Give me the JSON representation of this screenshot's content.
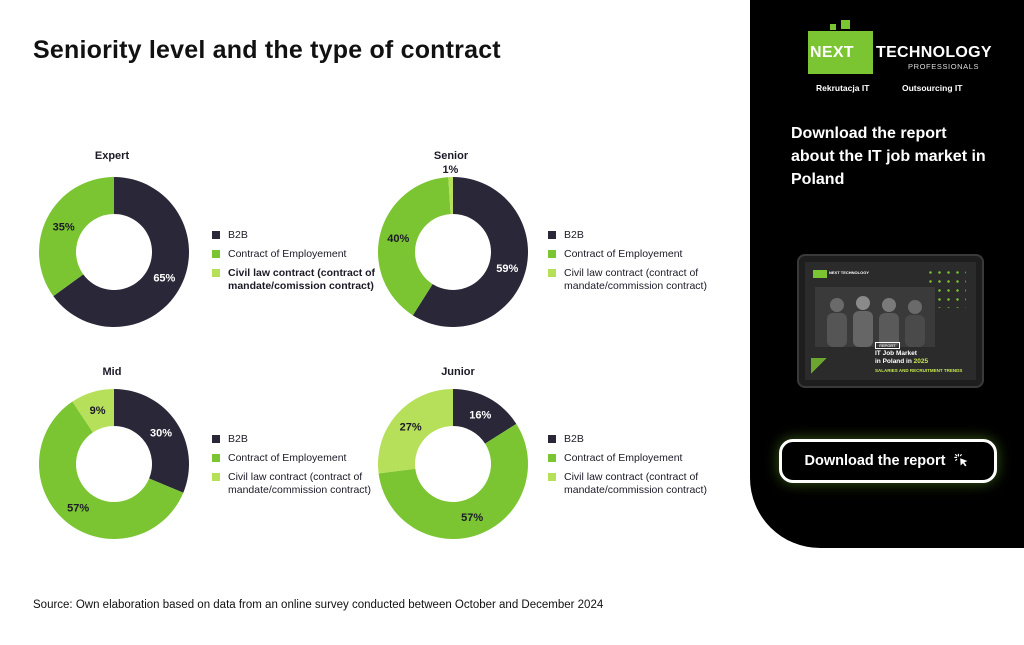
{
  "page_title": "Seniority level and the type of contract",
  "source_note": "Source: Own elaboration based on data from an online survey conducted between October and December 2024",
  "colors": {
    "b2b": "#2a2739",
    "contract_of_employment": "#7bc532",
    "civil_law": "#b6e05a"
  },
  "chart_data": [
    {
      "type": "pie",
      "title": "Expert",
      "categories": [
        "B2B",
        "Contract of Employement",
        "Civil law contract (contract of mandate/comission contract)"
      ],
      "values": [
        65,
        35,
        0
      ],
      "labels": [
        "65%",
        "35%",
        ""
      ],
      "legend": [
        "B2B",
        "Contract of Employement",
        "Civil law contract (contract of mandate/comission contract)"
      ]
    },
    {
      "type": "pie",
      "title": "Senior",
      "categories": [
        "B2B",
        "Contract of Employement",
        "Civil law contract (contract of mandate/commission contract)"
      ],
      "values": [
        59,
        40,
        1
      ],
      "labels": [
        "59%",
        "40%",
        "1%"
      ],
      "legend": [
        "B2B",
        "Contract of Employement",
        "Civil law contract (contract of mandate/commission contract)"
      ]
    },
    {
      "type": "pie",
      "title": "Mid",
      "categories": [
        "B2B",
        "Contract of Employement",
        "Civil law contract (contract of mandate/commission contract)"
      ],
      "values": [
        30,
        57,
        9
      ],
      "labels": [
        "30%",
        "57%",
        "9%"
      ],
      "legend": [
        "B2B",
        "Contract of Employement",
        "Civil law contract (contract of mandate/commission contract)"
      ]
    },
    {
      "type": "pie",
      "title": "Junior",
      "categories": [
        "B2B",
        "Contract of Employement",
        "Civil law contract (contract of mandate/commission contract)"
      ],
      "values": [
        16,
        57,
        27
      ],
      "labels": [
        "16%",
        "57%",
        "27%"
      ],
      "legend": [
        "B2B",
        "Contract of Employement",
        "Civil law contract (contract of mandate/commission contract)"
      ]
    }
  ],
  "panel": {
    "logo_next": "NEXT",
    "logo_technology": "TECHNOLOGY",
    "logo_professionals": "PROFESSIONALS",
    "tag_recruitment": "Rekrutacja IT",
    "tag_outsourcing": "Outsourcing IT",
    "cta_text": "Download the report about the IT job market in Poland",
    "tablet": {
      "mini_logo": "NEXT TECHNOLOGY",
      "badge": "REPORT",
      "line1": "IT Job Market",
      "line2_prefix": "in Poland in ",
      "line2_year": "2025",
      "line3": "SALARIES AND RECRUITMENT TRENDS"
    },
    "button_label": "Download the report",
    "button_icon": "cursor-click-icon"
  }
}
